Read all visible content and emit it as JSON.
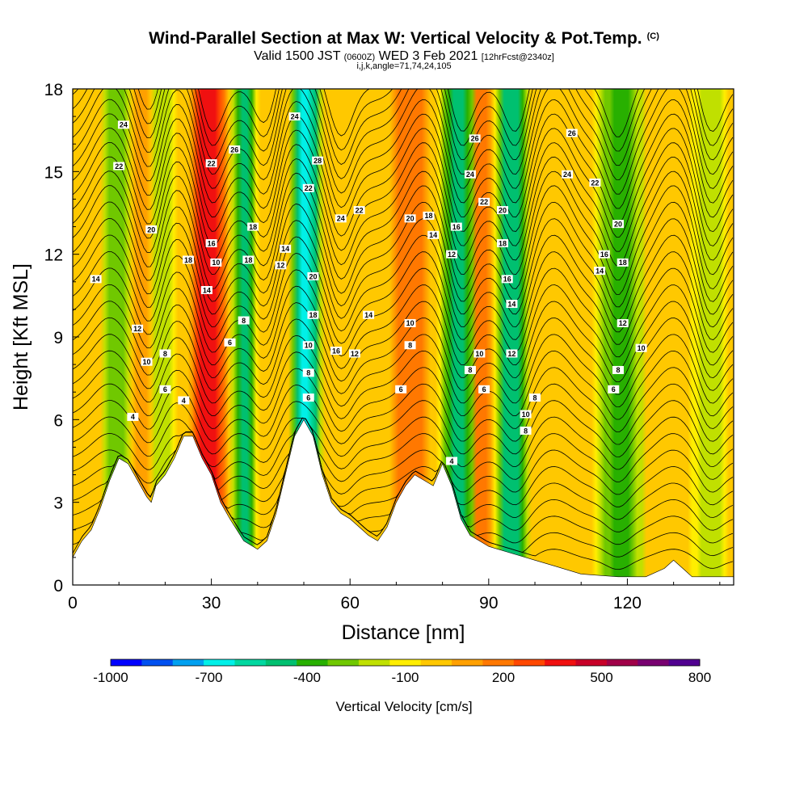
{
  "header": {
    "title": "Wind-Parallel Section at Max W: Vertical Velocity & Pot.Temp.",
    "copyright": "(C)",
    "valid_pre": "Valid 1500 JST",
    "valid_utc": "(0600Z)",
    "valid_date": "WED 3 Feb 2021",
    "forecast": "[12hrFcst@2340z]",
    "indices": "i,j,k,angle=71,74,24,105"
  },
  "chart_data": {
    "type": "heatmap",
    "xlabel": "Distance [nm]",
    "ylabel": "Height [Kft MSL]",
    "xlim": [
      0,
      143
    ],
    "ylim": [
      0,
      18
    ],
    "x_ticks": [
      0,
      30,
      60,
      90,
      120
    ],
    "y_ticks": [
      0,
      3,
      6,
      9,
      12,
      15,
      18
    ],
    "terrain_kft": [
      [
        0,
        1.0
      ],
      [
        2,
        1.6
      ],
      [
        4,
        2.0
      ],
      [
        6,
        2.8
      ],
      [
        8,
        3.8
      ],
      [
        10,
        4.6
      ],
      [
        12,
        4.4
      ],
      [
        14,
        3.8
      ],
      [
        16,
        3.2
      ],
      [
        17,
        3.0
      ],
      [
        18,
        3.6
      ],
      [
        20,
        4.0
      ],
      [
        22,
        4.6
      ],
      [
        24,
        5.4
      ],
      [
        26,
        5.4
      ],
      [
        28,
        4.6
      ],
      [
        30,
        4.0
      ],
      [
        32,
        3.0
      ],
      [
        34,
        2.4
      ],
      [
        37,
        1.6
      ],
      [
        40,
        1.3
      ],
      [
        42,
        1.6
      ],
      [
        44,
        2.6
      ],
      [
        46,
        4.0
      ],
      [
        48,
        5.4
      ],
      [
        50,
        6.0
      ],
      [
        52,
        5.4
      ],
      [
        54,
        4.0
      ],
      [
        56,
        3.0
      ],
      [
        58,
        2.6
      ],
      [
        60,
        2.4
      ],
      [
        62,
        2.1
      ],
      [
        64,
        1.8
      ],
      [
        66,
        1.6
      ],
      [
        68,
        2.1
      ],
      [
        70,
        3.0
      ],
      [
        72,
        3.6
      ],
      [
        74,
        4.0
      ],
      [
        76,
        3.8
      ],
      [
        78,
        3.6
      ],
      [
        80,
        4.4
      ],
      [
        82,
        3.6
      ],
      [
        84,
        2.4
      ],
      [
        86,
        1.8
      ],
      [
        88,
        1.6
      ],
      [
        90,
        1.4
      ],
      [
        92,
        1.3
      ],
      [
        94,
        1.2
      ],
      [
        96,
        1.1
      ],
      [
        100,
        0.9
      ],
      [
        104,
        0.7
      ],
      [
        110,
        0.4
      ],
      [
        118,
        0.3
      ],
      [
        124,
        0.3
      ],
      [
        128,
        0.6
      ],
      [
        130,
        0.9
      ],
      [
        132,
        0.6
      ],
      [
        134,
        0.3
      ],
      [
        143,
        0.3
      ]
    ],
    "vertical_velocity_bands": {
      "units": "cm/s",
      "background_cm_s": 0,
      "updrafts": [
        {
          "x_nm": [
            25,
            34
          ],
          "peak_cm_s": 500
        },
        {
          "x_nm": [
            68,
            78
          ],
          "peak_cm_s": 300
        },
        {
          "x_nm": [
            85,
            92
          ],
          "peak_cm_s": 250
        },
        {
          "x_nm": [
            12,
            17
          ],
          "peak_cm_s": 150
        }
      ],
      "downdrafts": [
        {
          "x_nm": [
            34,
            40
          ],
          "peak_cm_s": -450
        },
        {
          "x_nm": [
            47,
            54
          ],
          "peak_cm_s": -650
        },
        {
          "x_nm": [
            79,
            88
          ],
          "peak_cm_s": -450
        },
        {
          "x_nm": [
            91,
            99
          ],
          "peak_cm_s": -500
        },
        {
          "x_nm": [
            113,
            124
          ],
          "peak_cm_s": -350
        },
        {
          "x_nm": [
            6,
            13
          ],
          "peak_cm_s": -250
        },
        {
          "x_nm": [
            17,
            22
          ],
          "peak_cm_s": -200
        },
        {
          "x_nm": [
            134,
            142
          ],
          "peak_cm_s": -200
        }
      ]
    },
    "theta_contour_labels": [
      {
        "v": "4",
        "x": 13,
        "y": 6.1
      },
      {
        "v": "4",
        "x": 24,
        "y": 6.7
      },
      {
        "v": "4",
        "x": 82,
        "y": 4.5
      },
      {
        "v": "6",
        "x": 20,
        "y": 7.1
      },
      {
        "v": "6",
        "x": 34,
        "y": 8.8
      },
      {
        "v": "6",
        "x": 51,
        "y": 6.8
      },
      {
        "v": "6",
        "x": 71,
        "y": 7.1
      },
      {
        "v": "6",
        "x": 89,
        "y": 7.1
      },
      {
        "v": "6",
        "x": 117,
        "y": 7.1
      },
      {
        "v": "8",
        "x": 20,
        "y": 8.4
      },
      {
        "v": "8",
        "x": 37,
        "y": 9.6
      },
      {
        "v": "8",
        "x": 51,
        "y": 7.7
      },
      {
        "v": "8",
        "x": 86,
        "y": 7.8
      },
      {
        "v": "8",
        "x": 100,
        "y": 6.8
      },
      {
        "v": "8",
        "x": 98,
        "y": 5.6
      },
      {
        "v": "8",
        "x": 118,
        "y": 7.8
      },
      {
        "v": "8",
        "x": 73,
        "y": 8.7
      },
      {
        "v": "10",
        "x": 16,
        "y": 8.1
      },
      {
        "v": "10",
        "x": 31,
        "y": 11.7
      },
      {
        "v": "10",
        "x": 51,
        "y": 8.7
      },
      {
        "v": "10",
        "x": 73,
        "y": 9.5
      },
      {
        "v": "10",
        "x": 88,
        "y": 8.4
      },
      {
        "v": "10",
        "x": 98,
        "y": 6.2
      },
      {
        "v": "10",
        "x": 123,
        "y": 8.6
      },
      {
        "v": "12",
        "x": 14,
        "y": 9.3
      },
      {
        "v": "12",
        "x": 45,
        "y": 11.6
      },
      {
        "v": "12",
        "x": 61,
        "y": 8.4
      },
      {
        "v": "12",
        "x": 82,
        "y": 12.0
      },
      {
        "v": "12",
        "x": 95,
        "y": 8.4
      },
      {
        "v": "12",
        "x": 119,
        "y": 9.5
      },
      {
        "v": "14",
        "x": 5,
        "y": 11.1
      },
      {
        "v": "14",
        "x": 29,
        "y": 10.7
      },
      {
        "v": "14",
        "x": 46,
        "y": 12.2
      },
      {
        "v": "14",
        "x": 64,
        "y": 9.8
      },
      {
        "v": "14",
        "x": 78,
        "y": 12.7
      },
      {
        "v": "14",
        "x": 95,
        "y": 10.2
      },
      {
        "v": "14",
        "x": 114,
        "y": 11.4
      },
      {
        "v": "16",
        "x": 30,
        "y": 12.4
      },
      {
        "v": "16",
        "x": 57,
        "y": 8.5
      },
      {
        "v": "16",
        "x": 83,
        "y": 13.0
      },
      {
        "v": "16",
        "x": 94,
        "y": 11.1
      },
      {
        "v": "16",
        "x": 115,
        "y": 12.0
      },
      {
        "v": "18",
        "x": 25,
        "y": 11.8
      },
      {
        "v": "18",
        "x": 38,
        "y": 11.8
      },
      {
        "v": "18",
        "x": 39,
        "y": 13.0
      },
      {
        "v": "18",
        "x": 52,
        "y": 9.8
      },
      {
        "v": "18",
        "x": 77,
        "y": 13.4
      },
      {
        "v": "18",
        "x": 93,
        "y": 12.4
      },
      {
        "v": "18",
        "x": 119,
        "y": 11.7
      },
      {
        "v": "20",
        "x": 17,
        "y": 12.9
      },
      {
        "v": "20",
        "x": 52,
        "y": 11.2
      },
      {
        "v": "20",
        "x": 73,
        "y": 13.3
      },
      {
        "v": "20",
        "x": 93,
        "y": 13.6
      },
      {
        "v": "20",
        "x": 118,
        "y": 13.1
      },
      {
        "v": "22",
        "x": 10,
        "y": 15.2
      },
      {
        "v": "22",
        "x": 30,
        "y": 15.3
      },
      {
        "v": "22",
        "x": 51,
        "y": 14.4
      },
      {
        "v": "22",
        "x": 62,
        "y": 13.6
      },
      {
        "v": "22",
        "x": 89,
        "y": 13.9
      },
      {
        "v": "22",
        "x": 113,
        "y": 14.6
      },
      {
        "v": "24",
        "x": 11,
        "y": 16.7
      },
      {
        "v": "24",
        "x": 48,
        "y": 17.0
      },
      {
        "v": "24",
        "x": 58,
        "y": 13.3
      },
      {
        "v": "24",
        "x": 86,
        "y": 14.9
      },
      {
        "v": "24",
        "x": 107,
        "y": 14.9
      },
      {
        "v": "26",
        "x": 35,
        "y": 15.8
      },
      {
        "v": "26",
        "x": 87,
        "y": 16.2
      },
      {
        "v": "26",
        "x": 108,
        "y": 16.4
      },
      {
        "v": "28",
        "x": 53,
        "y": 15.4
      }
    ],
    "colorbar": {
      "label": "Vertical Velocity [cm/s]",
      "tick_labels": [
        "-1000",
        "-700",
        "-400",
        "-100",
        "200",
        "500",
        "800"
      ],
      "colors": [
        "#0000ff",
        "#0050f0",
        "#00a0f0",
        "#00f0e8",
        "#00d8a0",
        "#00c070",
        "#28b000",
        "#70c800",
        "#c0e000",
        "#ffee00",
        "#ffc800",
        "#ffa000",
        "#ff7800",
        "#ff4800",
        "#f01010",
        "#c80028",
        "#a00048",
        "#780070",
        "#500090"
      ]
    }
  }
}
